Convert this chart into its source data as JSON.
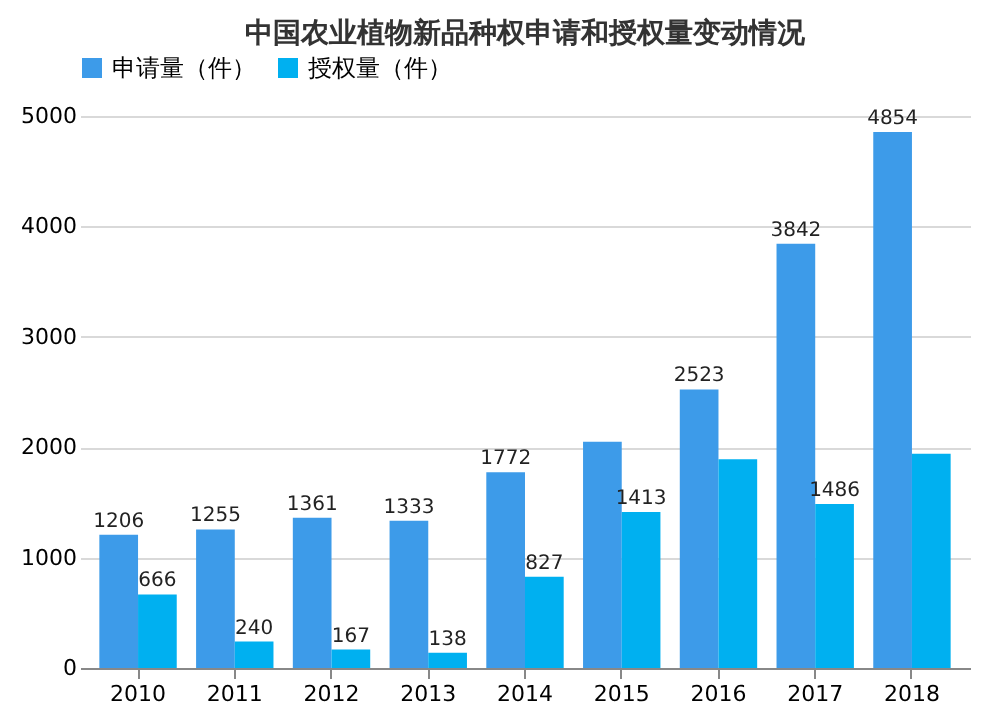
{
  "chart_data": {
    "type": "bar",
    "title": "中国农业植物新品种权申请和授权量变动情况",
    "categories": [
      "2010",
      "2011",
      "2012",
      "2013",
      "2014",
      "2015",
      "2016",
      "2017",
      "2018"
    ],
    "series": [
      {
        "name": "申请量（件）",
        "color": "#3d9be9",
        "values": [
          1206,
          1255,
          1361,
          1333,
          1772,
          2050,
          2523,
          3842,
          4854
        ],
        "value_labels": [
          "1206",
          "1255",
          "1361",
          "1333",
          "1772",
          null,
          "2523",
          "3842",
          "4854"
        ]
      },
      {
        "name": "授权量（件）",
        "color": "#00b0f0",
        "values": [
          666,
          240,
          167,
          138,
          827,
          1413,
          1890,
          1486,
          1940
        ],
        "value_labels": [
          "666",
          "240",
          "167",
          "138",
          "827",
          "1413",
          null,
          "1486",
          null
        ]
      }
    ],
    "ylim": [
      0,
      5000
    ],
    "yticks": [
      0,
      1000,
      2000,
      3000,
      4000,
      5000
    ],
    "grid": "y",
    "legend": "top"
  }
}
